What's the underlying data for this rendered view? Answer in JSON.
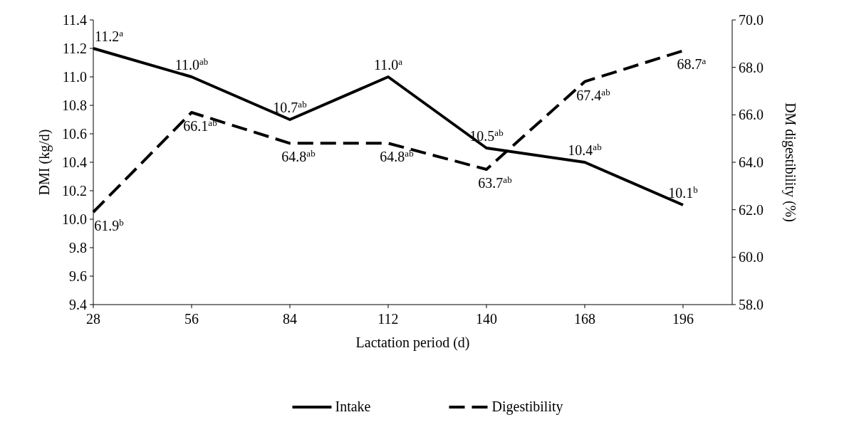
{
  "chart_data": {
    "type": "line",
    "xlabel": "Lactation period (d)",
    "ylabel": "DMI (kg/d)",
    "y2label": "DM digestibility (%)",
    "x": [
      28,
      56,
      84,
      112,
      140,
      168,
      196
    ],
    "xlim": [
      28,
      210
    ],
    "xticks": [
      28,
      56,
      84,
      112,
      140,
      168,
      196
    ],
    "ylim": [
      9.4,
      11.4
    ],
    "yticks": [
      {
        "value": 9.4,
        "label": "9.4"
      },
      {
        "value": 9.6,
        "label": "9.6"
      },
      {
        "value": 9.8,
        "label": "9.8"
      },
      {
        "value": 10.0,
        "label": "10.0"
      },
      {
        "value": 10.2,
        "label": "10.2"
      },
      {
        "value": 10.4,
        "label": "10.4"
      },
      {
        "value": 10.6,
        "label": "10.6"
      },
      {
        "value": 10.8,
        "label": "10.8"
      },
      {
        "value": 11.0,
        "label": "11.0"
      },
      {
        "value": 11.2,
        "label": "11.2"
      },
      {
        "value": 11.4,
        "label": "11.4"
      }
    ],
    "y2lim": [
      58,
      70
    ],
    "y2ticks": [
      {
        "value": 58,
        "label": "58.0"
      },
      {
        "value": 60,
        "label": "60.0"
      },
      {
        "value": 62,
        "label": "62.0"
      },
      {
        "value": 64,
        "label": "64.0"
      },
      {
        "value": 66,
        "label": "66.0"
      },
      {
        "value": 68,
        "label": "68.0"
      },
      {
        "value": 70,
        "label": "70.0"
      }
    ],
    "series": [
      {
        "name": "Intake",
        "color": "#000000",
        "line_style": "solid",
        "values": [
          11.2,
          11.0,
          10.7,
          11.0,
          10.5,
          10.4,
          10.1
        ],
        "value_labels": [
          "11.2$^{a}$",
          "11.0$^{ab}$",
          "10.7$^{ab}$",
          "11.0$^{a}$",
          "10.5$^{ab}$",
          "10.4$^{ab}$",
          "10.1$^{b}$"
        ]
      },
      {
        "name": "Digestibility",
        "color": "#000000",
        "line_style": "dashed",
        "axis": "y2",
        "values": [
          61.9,
          66.1,
          64.8,
          64.8,
          63.7,
          67.4,
          68.7
        ],
        "value_labels": [
          "61.9$^{b}$",
          "66.1$^{ab}$",
          "64.8$^{ab}$",
          "64.8$^{ab}$",
          "63.7$^{ab}$",
          "67.4$^{ab}$",
          "68.7$^{a}$"
        ]
      }
    ],
    "legend": "bottom",
    "grid": false,
    "marker": "none"
  }
}
